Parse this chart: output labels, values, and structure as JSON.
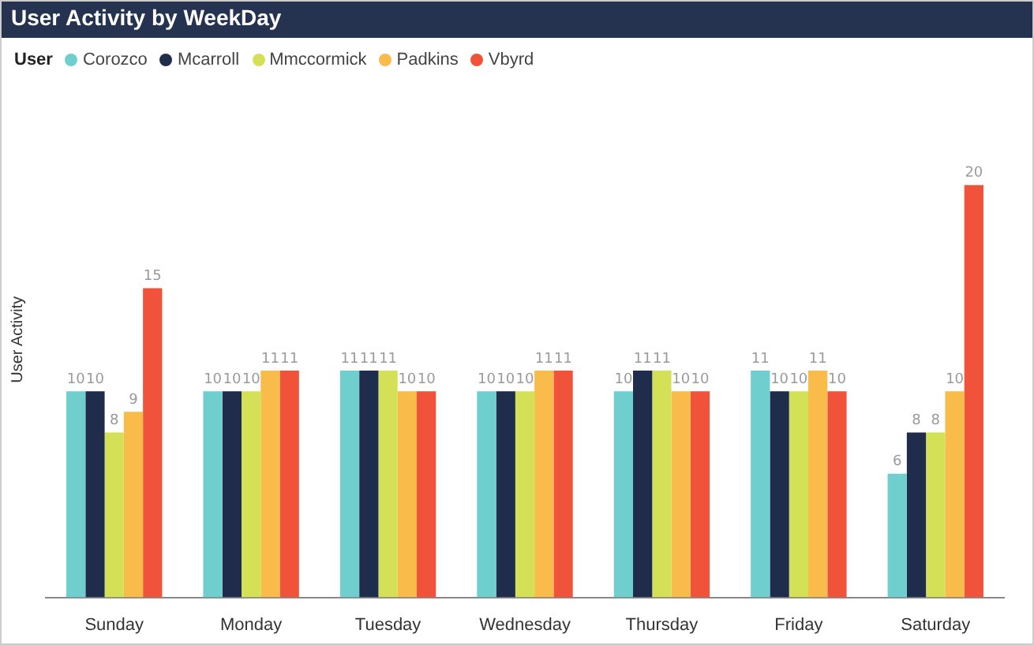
{
  "chart_data": {
    "type": "bar",
    "title": "User Activity by WeekDay",
    "ylabel": "User Activity",
    "legend_title": "User",
    "legend": "top left",
    "data_labels": true,
    "grid": false,
    "categories": [
      "Sunday",
      "Monday",
      "Tuesday",
      "Wednesday",
      "Thursday",
      "Friday",
      "Saturday"
    ],
    "series": [
      {
        "name": "Corozco",
        "color": "#6fcfcf",
        "values": [
          10,
          10,
          11,
          10,
          10,
          11,
          6
        ]
      },
      {
        "name": "Mcarroll",
        "color": "#1f2c4b",
        "values": [
          10,
          10,
          11,
          10,
          11,
          10,
          8
        ]
      },
      {
        "name": "Mmccormick",
        "color": "#d4e157",
        "values": [
          8,
          10,
          11,
          10,
          11,
          10,
          8
        ]
      },
      {
        "name": "Padkins",
        "color": "#f9bb4a",
        "values": [
          9,
          11,
          10,
          11,
          10,
          11,
          10
        ]
      },
      {
        "name": "Vbyrd",
        "color": "#f0533a",
        "values": [
          15,
          11,
          10,
          11,
          10,
          10,
          20
        ]
      }
    ]
  }
}
